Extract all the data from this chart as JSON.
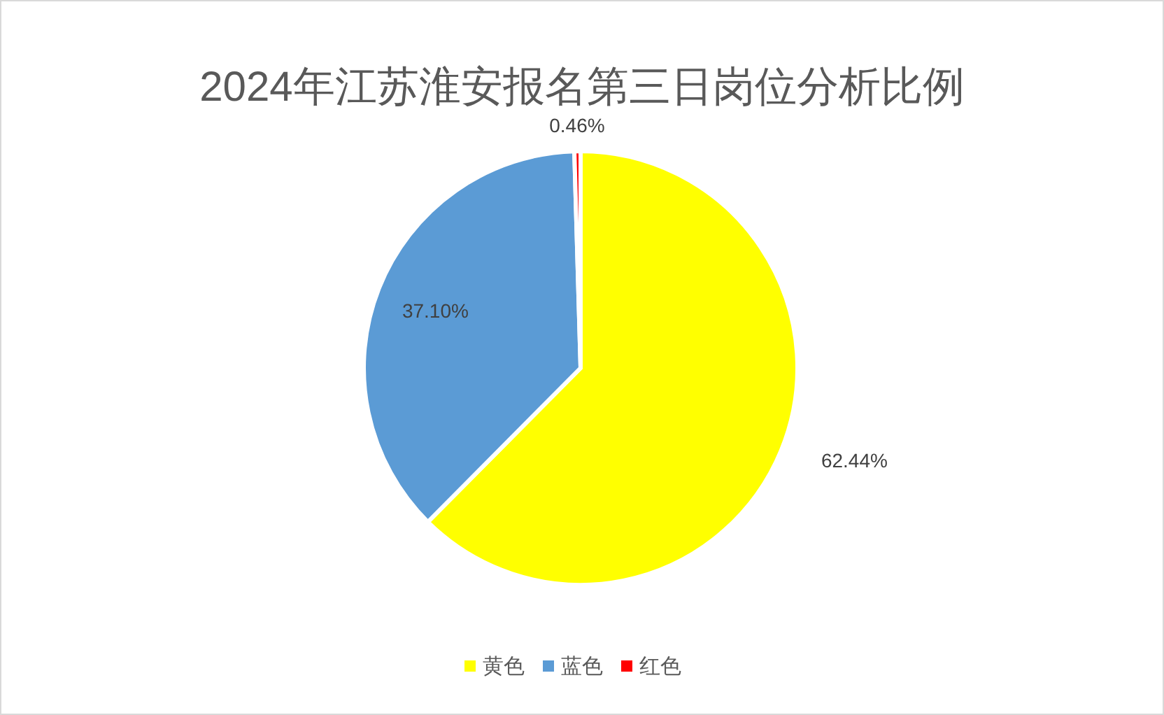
{
  "chart_data": {
    "type": "pie",
    "title": "2024年江苏淮安报名第三日岗位分析比例",
    "categories": [
      "黄色",
      "蓝色",
      "红色"
    ],
    "values": [
      62.44,
      37.1,
      0.46
    ],
    "value_labels": [
      "62.44%",
      "37.10%",
      "0.46%"
    ],
    "colors": [
      "#ffff00",
      "#5b9bd5",
      "#ff0000"
    ],
    "legend": "bottom"
  }
}
